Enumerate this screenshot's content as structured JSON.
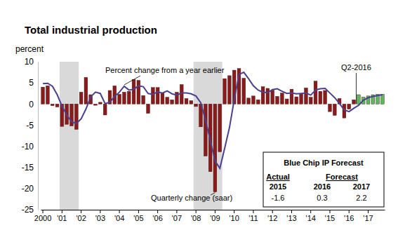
{
  "chart_data": {
    "type": "bar",
    "title": "Total industrial production",
    "y_label": "percent",
    "categories": [
      "2000",
      null,
      null,
      null,
      "'01",
      null,
      null,
      null,
      "'02",
      null,
      null,
      null,
      "'03",
      null,
      null,
      null,
      "'04",
      null,
      null,
      null,
      "'05",
      null,
      null,
      null,
      "'06",
      null,
      null,
      null,
      "'07",
      null,
      null,
      null,
      "'08",
      null,
      null,
      null,
      "'09",
      null,
      null,
      null,
      "'10",
      null,
      null,
      null,
      "'11",
      null,
      null,
      null,
      "'12",
      null,
      null,
      null,
      "'13",
      null,
      null,
      null,
      "'14",
      null,
      null,
      null,
      "'15",
      null,
      null,
      null,
      "'16",
      null,
      null,
      null,
      "'17",
      null,
      null,
      null
    ],
    "series": [
      {
        "name": "Quarterly change (saar)",
        "type": "bar",
        "values": [
          4.0,
          4.3,
          -0.4,
          -0.7,
          -5.3,
          -4.8,
          -5.2,
          -6.0,
          2.8,
          6.3,
          2.2,
          -0.3,
          0.4,
          -2.6,
          3.2,
          4.3,
          2.3,
          2.8,
          3.0,
          5.8,
          5.6,
          2.0,
          -2.2,
          3.9,
          3.9,
          2.6,
          1.6,
          1.0,
          2.8,
          4.6,
          1.3,
          0.8,
          -0.6,
          -5.4,
          -12.3,
          -16.0,
          -20.8,
          -11.3,
          6.0,
          6.7,
          8.0,
          8.4,
          6.1,
          1.4,
          1.9,
          1.0,
          4.1,
          3.7,
          3.3,
          1.8,
          2.6,
          1.2,
          3.5,
          1.7,
          2.4,
          3.8,
          1.6,
          5.4,
          3.0,
          3.2,
          -1.8,
          -2.7,
          1.3,
          -3.3,
          -1.2,
          1.0,
          2.2,
          1.6,
          1.9,
          2.2,
          2.3,
          2.3
        ],
        "colors": [
          "#8b1a1a",
          "#8b1a1a",
          "#8b1a1a",
          "#8b1a1a",
          "#8b1a1a",
          "#8b1a1a",
          "#8b1a1a",
          "#8b1a1a",
          "#8b1a1a",
          "#8b1a1a",
          "#8b1a1a",
          "#8b1a1a",
          "#8b1a1a",
          "#8b1a1a",
          "#8b1a1a",
          "#8b1a1a",
          "#8b1a1a",
          "#8b1a1a",
          "#8b1a1a",
          "#8b1a1a",
          "#8b1a1a",
          "#8b1a1a",
          "#8b1a1a",
          "#8b1a1a",
          "#8b1a1a",
          "#8b1a1a",
          "#8b1a1a",
          "#8b1a1a",
          "#8b1a1a",
          "#8b1a1a",
          "#8b1a1a",
          "#8b1a1a",
          "#8b1a1a",
          "#8b1a1a",
          "#8b1a1a",
          "#8b1a1a",
          "#8b1a1a",
          "#8b1a1a",
          "#8b1a1a",
          "#8b1a1a",
          "#8b1a1a",
          "#8b1a1a",
          "#8b1a1a",
          "#8b1a1a",
          "#8b1a1a",
          "#8b1a1a",
          "#8b1a1a",
          "#8b1a1a",
          "#8b1a1a",
          "#8b1a1a",
          "#8b1a1a",
          "#8b1a1a",
          "#8b1a1a",
          "#8b1a1a",
          "#8b1a1a",
          "#8b1a1a",
          "#8b1a1a",
          "#8b1a1a",
          "#8b1a1a",
          "#8b1a1a",
          "#8b1a1a",
          "#8b1a1a",
          "#8b1a1a",
          "#8b1a1a",
          "#8b1a1a",
          "#8b1a1a",
          "#5cb85c",
          "#5cb85c",
          "#5cb85c",
          "#5cb85c",
          "#5cb85c",
          "#5cb85c"
        ]
      },
      {
        "name": "Percent change from a year earlier",
        "type": "line",
        "color": "#4b3f8f",
        "values": [
          4.8,
          4.9,
          4.2,
          2.2,
          -0.5,
          -2.6,
          -4.2,
          -4.6,
          -3.5,
          -1.2,
          1.7,
          2.8,
          2.5,
          0.1,
          0.4,
          1.8,
          2.8,
          4.2,
          3.3,
          3.5,
          4.3,
          4.1,
          2.5,
          2.3,
          2.9,
          2.6,
          3.1,
          2.4,
          2.1,
          2.6,
          2.6,
          2.4,
          1.9,
          0.3,
          -3.8,
          -8.6,
          -13.5,
          -15.2,
          -10.5,
          -5.6,
          1.0,
          7.0,
          7.5,
          6.0,
          4.3,
          3.3,
          2.8,
          2.7,
          3.4,
          3.6,
          3.0,
          2.5,
          2.6,
          2.4,
          2.5,
          2.6,
          2.1,
          3.3,
          3.6,
          3.7,
          2.6,
          1.5,
          0.1,
          -1.4,
          -1.8,
          -1.0,
          -0.3,
          0.9,
          1.5,
          1.8,
          2.0,
          2.2
        ]
      }
    ],
    "recession_bands": [
      [
        4,
        7
      ],
      [
        32,
        37
      ]
    ],
    "annotations": [
      "Q2-2016"
    ],
    "ylim": [
      -25,
      10
    ],
    "yticks": [
      -25,
      -20,
      -15,
      -10,
      -5,
      0,
      5,
      10
    ],
    "grid": false,
    "forecast_table": {
      "title": "Blue Chip IP Forecast",
      "actual_header": "Actual",
      "forecast_header": "Forecast",
      "years": [
        "2015",
        "2016",
        "2017"
      ],
      "values": [
        -1.6,
        0.3,
        2.2
      ]
    }
  }
}
